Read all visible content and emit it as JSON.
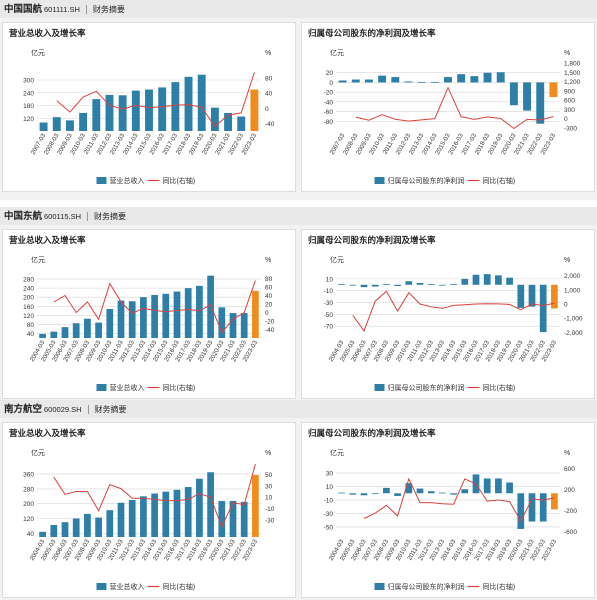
{
  "colors": {
    "bar": "#2e7fa8",
    "highlight": "#f08c1e",
    "line": "#d9423c",
    "grid": "#d6d6d6"
  },
  "sections": [
    {
      "company": "中国国航",
      "code": "601111.SH",
      "tab": "财务摘要"
    },
    {
      "company": "中国东航",
      "code": "600115.SH",
      "tab": "财务摘要"
    },
    {
      "company": "南方航空",
      "code": "600029.SH",
      "tab": "财务摘要"
    }
  ],
  "chart_data": [
    {
      "id": "airchina-rev",
      "type": "bar",
      "title": "营业总收入及增长率",
      "left_unit": "亿元",
      "right_unit": "%",
      "categories": [
        "2007-03",
        "2008-03",
        "2009-03",
        "2010-03",
        "2011-03",
        "2012-03",
        "2013-03",
        "2014-03",
        "2015-03",
        "2016-03",
        "2017-03",
        "2018-03",
        "2019-03",
        "2020-03",
        "2021-03",
        "2022-03",
        "2023-03"
      ],
      "series": [
        {
          "name": "营业总收入",
          "axis": "left",
          "values": [
            100,
            125,
            110,
            145,
            210,
            230,
            228,
            250,
            255,
            265,
            290,
            315,
            325,
            170,
            145,
            128,
            255
          ],
          "highlight_last": true
        },
        {
          "name": "同比(右轴)",
          "axis": "right",
          "type": "line",
          "values": [
            null,
            20,
            -10,
            30,
            45,
            8,
            -2,
            8,
            2,
            4,
            8,
            10,
            3,
            -48,
            -18,
            -12,
            95
          ]
        }
      ],
      "ylim_left": [
        60,
        380
      ],
      "yticks_left": [
        120,
        180,
        240,
        300
      ],
      "ylim_right": [
        -60,
        120
      ],
      "yticks_right": [
        -40,
        0,
        40,
        80
      ]
    },
    {
      "id": "airchina-np",
      "type": "bar",
      "title": "归属母公司股东的净利润及增长率",
      "left_unit": "亿元",
      "right_unit": "%",
      "categories": [
        "2007-03",
        "2008-03",
        "2009-03",
        "2010-03",
        "2011-03",
        "2012-03",
        "2013-03",
        "2014-03",
        "2015-03",
        "2016-03",
        "2017-03",
        "2018-03",
        "2019-03",
        "2020-03",
        "2021-03",
        "2022-03",
        "2023-03"
      ],
      "series": [
        {
          "name": "归属母公司股东的净利润",
          "axis": "left",
          "values": [
            4,
            6,
            6,
            14,
            11,
            2,
            1,
            1,
            11,
            17,
            13,
            20,
            21,
            -47,
            -58,
            -85,
            -30
          ],
          "highlight_last": true
        },
        {
          "name": "同比(右轴)",
          "axis": "right",
          "type": "line",
          "values": [
            null,
            50,
            -50,
            130,
            -20,
            -80,
            -40,
            0,
            1000,
            60,
            -25,
            55,
            5,
            -320,
            -25,
            -45,
            65
          ]
        }
      ],
      "ylim_left": [
        -100,
        40
      ],
      "yticks_left": [
        -80,
        -60,
        -40,
        -20,
        0,
        20
      ],
      "ylim_right": [
        -400,
        1800
      ],
      "yticks_right": [
        -300,
        0,
        300,
        600,
        900,
        1200,
        1500,
        1800
      ]
    },
    {
      "id": "ceair-rev",
      "type": "bar",
      "title": "营业总收入及增长率",
      "left_unit": "亿元",
      "right_unit": "%",
      "categories": [
        "2004-03",
        "2005-03",
        "2006-03",
        "2007-03",
        "2008-03",
        "2009-03",
        "2010-03",
        "2011-03",
        "2012-03",
        "2013-03",
        "2014-03",
        "2015-03",
        "2016-03",
        "2017-03",
        "2018-03",
        "2019-03",
        "2020-03",
        "2021-03",
        "2022-03",
        "2023-03"
      ],
      "series": [
        {
          "name": "营业总收入",
          "axis": "left",
          "values": [
            38,
            48,
            68,
            85,
            105,
            88,
            148,
            185,
            182,
            200,
            210,
            215,
            225,
            240,
            250,
            295,
            155,
            130,
            130,
            228
          ],
          "highlight_last": true
        },
        {
          "name": "同比(右轴)",
          "axis": "right",
          "type": "line",
          "values": [
            null,
            25,
            40,
            0,
            25,
            -16,
            68,
            25,
            -2,
            10,
            5,
            2,
            5,
            7,
            4,
            18,
            -47,
            -16,
            0,
            75
          ]
        }
      ],
      "ylim_left": [
        20,
        320
      ],
      "yticks_left": [
        40,
        80,
        120,
        160,
        200,
        240,
        280
      ],
      "ylim_right": [
        -60,
        100
      ],
      "yticks_right": [
        -40,
        -20,
        0,
        20,
        40,
        60,
        80
      ]
    },
    {
      "id": "ceair-np",
      "type": "bar",
      "title": "归属母公司股东的净利润及增长率",
      "left_unit": "亿元",
      "right_unit": "%",
      "categories": [
        "2004-03",
        "2005-03",
        "2006-03",
        "2007-03",
        "2008-03",
        "2009-03",
        "2010-03",
        "2011-03",
        "2012-03",
        "2013-03",
        "2014-03",
        "2015-03",
        "2016-03",
        "2017-03",
        "2018-03",
        "2019-03",
        "2020-03",
        "2021-03",
        "2022-03",
        "2023-03"
      ],
      "series": [
        {
          "name": "归属母公司股东的净利润",
          "axis": "left",
          "values": [
            1,
            -1,
            -4,
            -3,
            1,
            -2,
            6,
            3,
            1,
            -1,
            1,
            10,
            17,
            18,
            16,
            12,
            -39,
            -37,
            -80,
            -40
          ],
          "highlight_last": true
        },
        {
          "name": "同比(右轴)",
          "axis": "right",
          "type": "line",
          "values": [
            null,
            -800,
            -1900,
            200,
            900,
            -500,
            800,
            0,
            -200,
            -300,
            -100,
            -50,
            0,
            20,
            10,
            -30,
            -400,
            5,
            -110,
            50
          ]
        }
      ],
      "ylim_left": [
        -90,
        25
      ],
      "yticks_left": [
        -70,
        -50,
        -30,
        -10,
        10
      ],
      "ylim_right": [
        -2400,
        2400
      ],
      "yticks_right": [
        -2000,
        -1000,
        0,
        1000,
        2000
      ]
    },
    {
      "id": "csair-rev",
      "type": "bar",
      "title": "营业总收入及增长率",
      "left_unit": "亿元",
      "right_unit": "%",
      "categories": [
        "2004-03",
        "2005-03",
        "2006-03",
        "2007-03",
        "2008-03",
        "2009-03",
        "2010-03",
        "2011-03",
        "2012-03",
        "2013-03",
        "2014-03",
        "2015-03",
        "2016-03",
        "2017-03",
        "2018-03",
        "2019-03",
        "2020-03",
        "2021-03",
        "2022-03",
        "2023-03"
      ],
      "series": [
        {
          "name": "营业总收入",
          "axis": "left",
          "values": [
            48,
            85,
            100,
            120,
            145,
            125,
            165,
            205,
            220,
            240,
            255,
            265,
            275,
            290,
            335,
            370,
            215,
            215,
            210,
            355
          ],
          "highlight_last": true
        },
        {
          "name": "同比(右轴)",
          "axis": "right",
          "type": "line",
          "values": [
            null,
            45,
            15,
            20,
            20,
            -14,
            32,
            25,
            8,
            8,
            6,
            4,
            4,
            6,
            16,
            10,
            -42,
            0,
            -3,
            68
          ]
        }
      ],
      "ylim_left": [
        20,
        420
      ],
      "yticks_left": [
        40,
        120,
        200,
        280,
        360
      ],
      "ylim_right": [
        -60,
        70
      ],
      "yticks_right": [
        -30,
        -10,
        10,
        30,
        50
      ]
    },
    {
      "id": "csair-np",
      "type": "bar",
      "title": "归属母公司股东的净利润及增长率",
      "left_unit": "亿元",
      "right_unit": "%",
      "categories": [
        "2004-03",
        "2005-03",
        "2006-03",
        "2007-03",
        "2008-03",
        "2009-03",
        "2010-03",
        "2011-03",
        "2012-03",
        "2013-03",
        "2014-03",
        "2015-03",
        "2016-03",
        "2017-03",
        "2018-03",
        "2019-03",
        "2020-03",
        "2021-03",
        "2022-03",
        "2023-03"
      ],
      "series": [
        {
          "name": "归属母公司股东的净利润",
          "axis": "left",
          "values": [
            1,
            -2,
            -3,
            -1,
            8,
            -4,
            15,
            7,
            3,
            1,
            -2,
            6,
            28,
            22,
            22,
            16,
            -53,
            -42,
            -42,
            -24
          ],
          "highlight_last": true
        },
        {
          "name": "同比(右轴)",
          "axis": "right",
          "type": "line",
          "values": [
            null,
            null,
            -350,
            -250,
            -100,
            -300,
            400,
            -50,
            -50,
            -70,
            -80,
            400,
            300,
            -20,
            0,
            -30,
            -400,
            20,
            0,
            40
          ]
        }
      ],
      "ylim_left": [
        -65,
        45
      ],
      "yticks_left": [
        -50,
        -30,
        -10,
        10,
        30
      ],
      "ylim_right": [
        -700,
        700
      ],
      "yticks_right": [
        -600,
        -200,
        200,
        600
      ]
    }
  ]
}
